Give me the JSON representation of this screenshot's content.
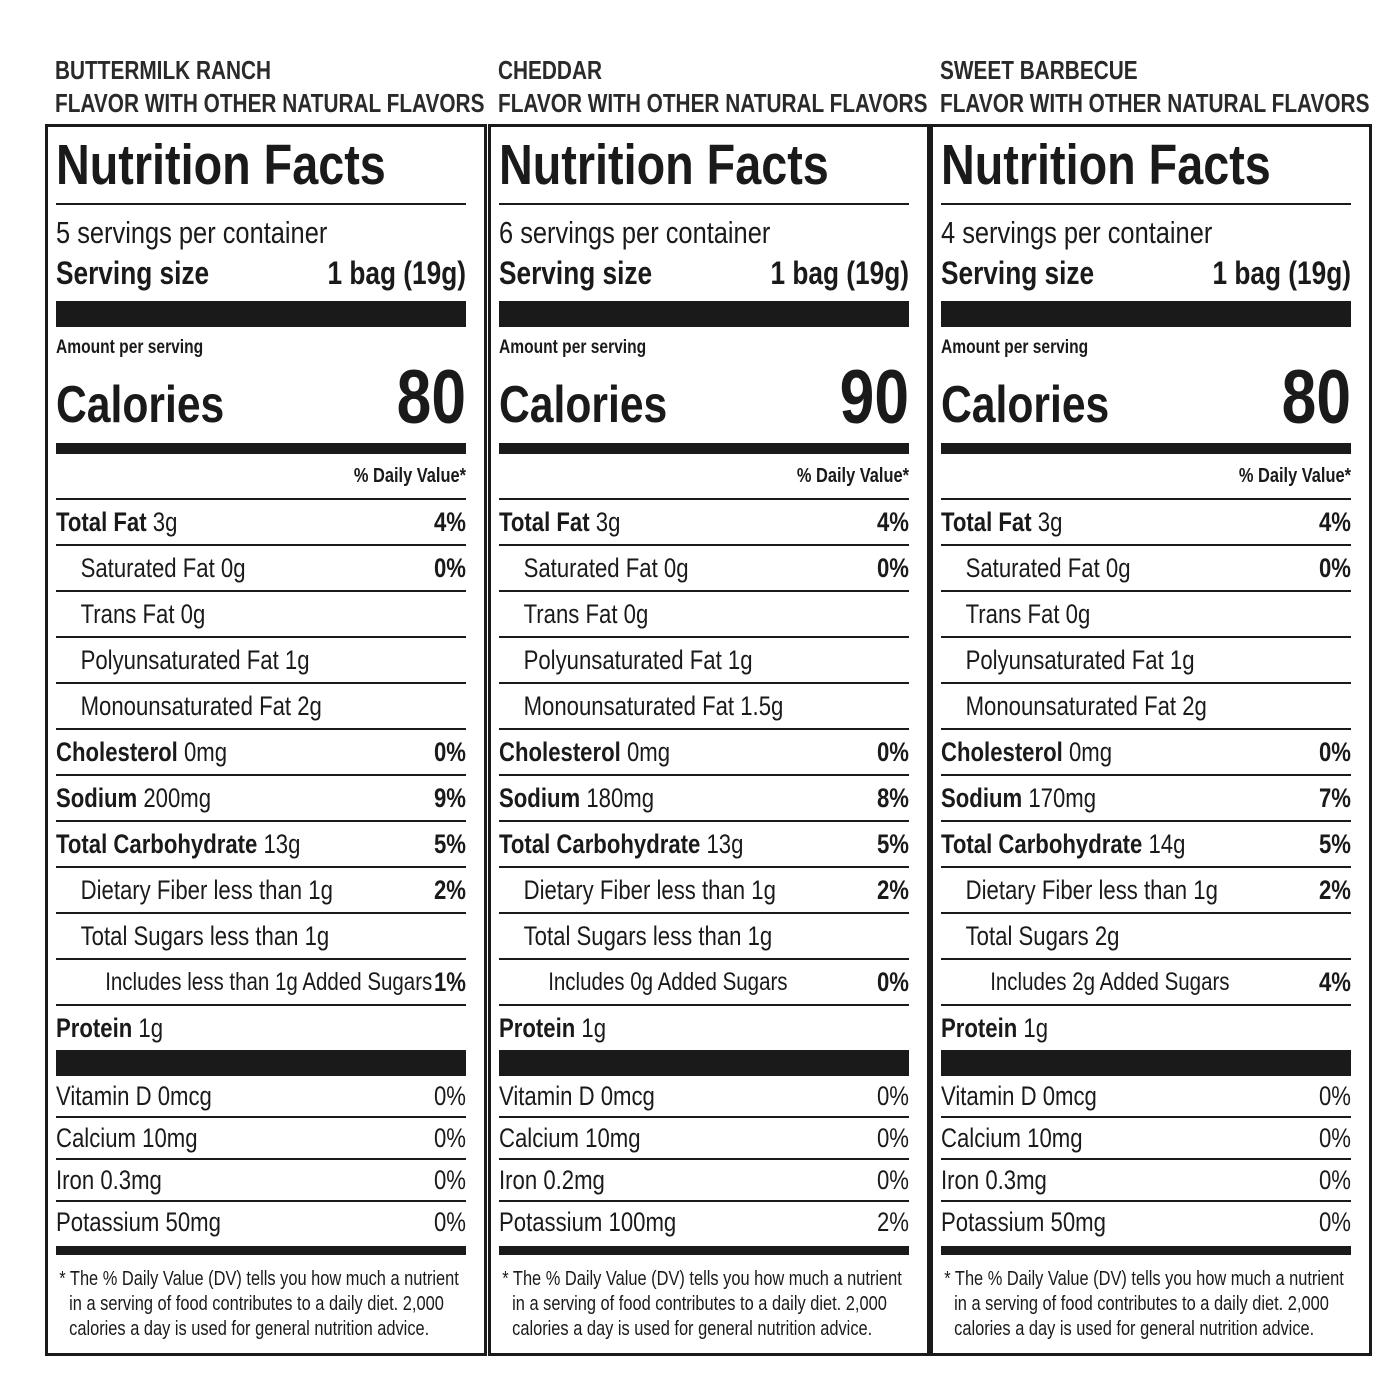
{
  "panels": [
    {
      "flavor": [
        "BUTTERMILK RANCH",
        "FLAVOR WITH OTHER NATURAL FLAVORS"
      ],
      "title": "Nutrition Facts",
      "servings": "5 servings per container",
      "serving_size_label": "Serving size",
      "serving_size": "1 bag (19g)",
      "amount_per_serving": "Amount per serving",
      "calories_label": "Calories",
      "calories": 80,
      "daily_value_header": "% Daily Value*",
      "nutrients": [
        {
          "name": "Total Fat",
          "amount": "3g",
          "dv": "4%",
          "children": [
            {
              "name": "Saturated Fat",
              "amount": "0g",
              "dv": "0%"
            },
            {
              "name": "Trans Fat",
              "amount": "0g"
            },
            {
              "name": "Polyunsaturated Fat",
              "amount": "1g"
            },
            {
              "name": "Monounsaturated Fat",
              "amount": "2g"
            }
          ]
        },
        {
          "name": "Cholesterol",
          "amount": "0mg",
          "dv": "0%"
        },
        {
          "name": "Sodium",
          "amount": "200mg",
          "dv": "9%"
        },
        {
          "name": "Total Carbohydrate",
          "amount": "13g",
          "dv": "5%",
          "children": [
            {
              "name": "Dietary Fiber",
              "amount": "less than 1g",
              "dv": "2%"
            },
            {
              "name": "Total Sugars",
              "amount": "less than 1g",
              "children": [
                {
                  "name": "Includes less than 1g Added Sugars",
                  "dv": "1%"
                }
              ]
            }
          ]
        },
        {
          "name": "Protein",
          "amount": "1g"
        }
      ],
      "vitamins": [
        {
          "name": "Vitamin D",
          "amount": "0mcg",
          "dv": "0%"
        },
        {
          "name": "Calcium",
          "amount": "10mg",
          "dv": "0%"
        },
        {
          "name": "Iron",
          "amount": "0.3mg",
          "dv": "0%"
        },
        {
          "name": "Potassium",
          "amount": "50mg",
          "dv": "0%"
        }
      ],
      "footnote": "* The % Daily Value (DV) tells you how much a nutrient in a serving of food contributes to a daily diet. 2,000 calories a day is used for general nutrition advice."
    },
    {
      "flavor": [
        "CHEDDAR",
        "FLAVOR WITH OTHER NATURAL FLAVORS"
      ],
      "title": "Nutrition Facts",
      "servings": "6 servings per container",
      "serving_size_label": "Serving size",
      "serving_size": "1 bag (19g)",
      "amount_per_serving": "Amount per serving",
      "calories_label": "Calories",
      "calories": 90,
      "daily_value_header": "% Daily Value*",
      "nutrients": [
        {
          "name": "Total Fat",
          "amount": "3g",
          "dv": "4%",
          "children": [
            {
              "name": "Saturated Fat",
              "amount": "0g",
              "dv": "0%"
            },
            {
              "name": "Trans Fat",
              "amount": "0g"
            },
            {
              "name": "Polyunsaturated Fat",
              "amount": "1g"
            },
            {
              "name": "Monounsaturated Fat",
              "amount": "1.5g"
            }
          ]
        },
        {
          "name": "Cholesterol",
          "amount": "0mg",
          "dv": "0%"
        },
        {
          "name": "Sodium",
          "amount": "180mg",
          "dv": "8%"
        },
        {
          "name": "Total Carbohydrate",
          "amount": "13g",
          "dv": "5%",
          "children": [
            {
              "name": "Dietary Fiber",
              "amount": "less than 1g",
              "dv": "2%"
            },
            {
              "name": "Total Sugars",
              "amount": "less than 1g",
              "children": [
                {
                  "name": "Includes 0g Added Sugars",
                  "dv": "0%"
                }
              ]
            }
          ]
        },
        {
          "name": "Protein",
          "amount": "1g"
        }
      ],
      "vitamins": [
        {
          "name": "Vitamin D",
          "amount": "0mcg",
          "dv": "0%"
        },
        {
          "name": "Calcium",
          "amount": "10mg",
          "dv": "0%"
        },
        {
          "name": "Iron",
          "amount": "0.2mg",
          "dv": "0%"
        },
        {
          "name": "Potassium",
          "amount": "100mg",
          "dv": "2%"
        }
      ],
      "footnote": "* The % Daily Value (DV) tells you how much a nutrient in a serving of food contributes to a daily diet. 2,000 calories a day is used for general nutrition advice."
    },
    {
      "flavor": [
        "SWEET BARBECUE",
        "FLAVOR WITH OTHER NATURAL FLAVORS"
      ],
      "title": "Nutrition Facts",
      "servings": "4 servings per container",
      "serving_size_label": "Serving size",
      "serving_size": "1 bag (19g)",
      "amount_per_serving": "Amount per serving",
      "calories_label": "Calories",
      "calories": 80,
      "daily_value_header": "% Daily Value*",
      "nutrients": [
        {
          "name": "Total Fat",
          "amount": "3g",
          "dv": "4%",
          "children": [
            {
              "name": "Saturated Fat",
              "amount": "0g",
              "dv": "0%"
            },
            {
              "name": "Trans Fat",
              "amount": "0g"
            },
            {
              "name": "Polyunsaturated Fat",
              "amount": "1g"
            },
            {
              "name": "Monounsaturated Fat",
              "amount": "2g"
            }
          ]
        },
        {
          "name": "Cholesterol",
          "amount": "0mg",
          "dv": "0%"
        },
        {
          "name": "Sodium",
          "amount": "170mg",
          "dv": "7%"
        },
        {
          "name": "Total Carbohydrate",
          "amount": "14g",
          "dv": "5%",
          "children": [
            {
              "name": "Dietary Fiber",
              "amount": "less than 1g",
              "dv": "2%"
            },
            {
              "name": "Total Sugars",
              "amount": "2g",
              "children": [
                {
                  "name": "Includes 2g Added Sugars",
                  "dv": "4%"
                }
              ]
            }
          ]
        },
        {
          "name": "Protein",
          "amount": "1g"
        }
      ],
      "vitamins": [
        {
          "name": "Vitamin D",
          "amount": "0mcg",
          "dv": "0%"
        },
        {
          "name": "Calcium",
          "amount": "10mg",
          "dv": "0%"
        },
        {
          "name": "Iron",
          "amount": "0.3mg",
          "dv": "0%"
        },
        {
          "name": "Potassium",
          "amount": "50mg",
          "dv": "0%"
        }
      ],
      "footnote": "* The % Daily Value (DV) tells you how much a nutrient in a serving of food contributes to a daily diet. 2,000 calories a day is used for general nutrition advice."
    }
  ]
}
